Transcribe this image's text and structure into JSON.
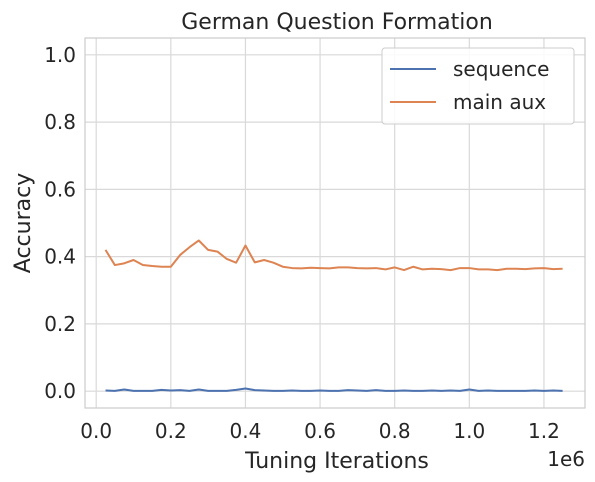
{
  "chart_data": {
    "type": "line",
    "title": "German Question Formation",
    "xlabel": "Tuning Iterations",
    "ylabel": "Accuracy",
    "x_offset_text": "1e6",
    "xlim": [
      -0.03,
      1.31
    ],
    "ylim": [
      -0.05,
      1.05
    ],
    "x_ticks": [
      0.0,
      0.2,
      0.4,
      0.6,
      0.8,
      1.0,
      1.2
    ],
    "x_tick_labels": [
      "0.0",
      "0.2",
      "0.4",
      "0.6",
      "0.8",
      "1.0",
      "1.2"
    ],
    "y_ticks": [
      0.0,
      0.2,
      0.4,
      0.6,
      0.8,
      1.0
    ],
    "y_tick_labels": [
      "0.0",
      "0.2",
      "0.4",
      "0.6",
      "0.8",
      "1.0"
    ],
    "grid": true,
    "legend_position": "top-right",
    "x": [
      0.025,
      0.05,
      0.075,
      0.1,
      0.125,
      0.15,
      0.175,
      0.2,
      0.225,
      0.25,
      0.275,
      0.3,
      0.325,
      0.35,
      0.375,
      0.4,
      0.425,
      0.45,
      0.475,
      0.5,
      0.525,
      0.55,
      0.575,
      0.6,
      0.625,
      0.65,
      0.675,
      0.7,
      0.725,
      0.75,
      0.775,
      0.8,
      0.825,
      0.85,
      0.875,
      0.9,
      0.925,
      0.95,
      0.975,
      1.0,
      1.025,
      1.05,
      1.075,
      1.1,
      1.125,
      1.15,
      1.175,
      1.2,
      1.225,
      1.25
    ],
    "series": [
      {
        "name": "sequence",
        "color": "#4c72b0",
        "values": [
          0.002,
          0.001,
          0.005,
          0.001,
          0.001,
          0.001,
          0.004,
          0.002,
          0.003,
          0.001,
          0.005,
          0.001,
          0.001,
          0.001,
          0.004,
          0.008,
          0.003,
          0.002,
          0.001,
          0.001,
          0.002,
          0.001,
          0.001,
          0.002,
          0.001,
          0.001,
          0.003,
          0.002,
          0.001,
          0.003,
          0.001,
          0.001,
          0.002,
          0.001,
          0.001,
          0.002,
          0.001,
          0.002,
          0.001,
          0.005,
          0.001,
          0.002,
          0.001,
          0.001,
          0.001,
          0.001,
          0.002,
          0.001,
          0.002,
          0.001
        ]
      },
      {
        "name": "main aux",
        "color": "#dd8452",
        "values": [
          0.42,
          0.375,
          0.38,
          0.39,
          0.375,
          0.372,
          0.37,
          0.37,
          0.405,
          0.428,
          0.448,
          0.42,
          0.415,
          0.393,
          0.382,
          0.433,
          0.383,
          0.39,
          0.382,
          0.37,
          0.366,
          0.365,
          0.367,
          0.366,
          0.365,
          0.368,
          0.368,
          0.366,
          0.365,
          0.366,
          0.362,
          0.368,
          0.36,
          0.37,
          0.362,
          0.364,
          0.363,
          0.36,
          0.366,
          0.366,
          0.362,
          0.362,
          0.36,
          0.364,
          0.364,
          0.363,
          0.365,
          0.366,
          0.363,
          0.364
        ]
      }
    ]
  }
}
